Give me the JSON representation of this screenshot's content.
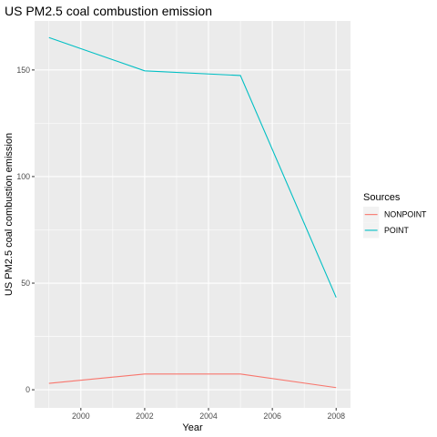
{
  "chart_data": {
    "type": "line",
    "title": "US PM2.5 coal combustion emission",
    "xlabel": "Year",
    "ylabel": "US PM2.5 coal combustion emission",
    "x": [
      1999,
      2002,
      2005,
      2008
    ],
    "xlim": [
      1998.55,
      2008.45
    ],
    "ylim": [
      -8.5,
      173
    ],
    "x_ticks": [
      2000,
      2002,
      2004,
      2006,
      2008
    ],
    "y_ticks": [
      0,
      50,
      100,
      150
    ],
    "grid": true,
    "legend": {
      "title": "Sources",
      "placement": "right"
    },
    "series": [
      {
        "name": "NONPOINT",
        "color": "#F8766D",
        "values": [
          3,
          7.4,
          7.4,
          1
        ]
      },
      {
        "name": "POINT",
        "color": "#00BFC4",
        "values": [
          165.2,
          149.6,
          147.4,
          43.3
        ]
      }
    ]
  }
}
